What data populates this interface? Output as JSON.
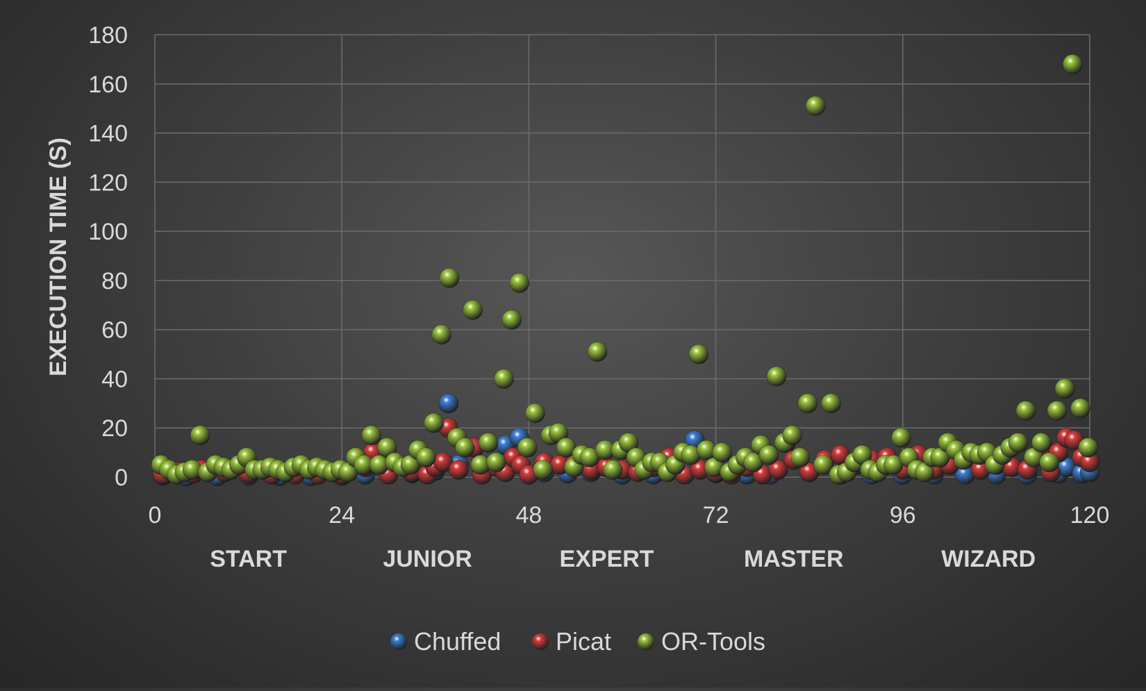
{
  "chart_data": {
    "type": "scatter",
    "title": "",
    "xlabel": "",
    "ylabel": "EXECUTION TIME (S)",
    "xlim": [
      0,
      120
    ],
    "ylim": [
      0,
      180
    ],
    "x_ticks": [
      0,
      24,
      48,
      72,
      96,
      120
    ],
    "y_ticks": [
      0,
      20,
      40,
      60,
      80,
      100,
      120,
      140,
      160,
      180
    ],
    "grid": true,
    "legend_position": "bottom",
    "group_labels": [
      {
        "label": "START",
        "x_center": 12
      },
      {
        "label": "JUNIOR",
        "x_center": 35
      },
      {
        "label": "EXPERT",
        "x_center": 58
      },
      {
        "label": "MASTER",
        "x_center": 82
      },
      {
        "label": "WIZARD",
        "x_center": 107
      }
    ],
    "series": [
      {
        "name": "Chuffed",
        "color": "#3d7fd6",
        "points": [
          [
            1,
            0.5
          ],
          [
            4,
            0.3
          ],
          [
            8,
            0.4
          ],
          [
            12,
            0.5
          ],
          [
            16,
            0.4
          ],
          [
            20,
            0.4
          ],
          [
            24,
            0.5
          ],
          [
            27,
            1
          ],
          [
            30,
            1.2
          ],
          [
            33,
            1.5
          ],
          [
            36,
            2.5
          ],
          [
            37.7,
            30
          ],
          [
            39,
            5
          ],
          [
            42,
            3
          ],
          [
            45,
            13
          ],
          [
            46.8,
            16
          ],
          [
            50,
            2
          ],
          [
            53,
            1.5
          ],
          [
            56,
            2
          ],
          [
            60,
            1
          ],
          [
            64,
            1
          ],
          [
            68,
            1.5
          ],
          [
            69.3,
            15
          ],
          [
            72,
            1.5
          ],
          [
            76,
            1
          ],
          [
            79,
            1
          ],
          [
            81,
            14
          ],
          [
            84,
            2
          ],
          [
            88,
            1
          ],
          [
            92,
            1
          ],
          [
            96,
            1
          ],
          [
            100,
            1
          ],
          [
            104,
            1
          ],
          [
            108,
            1
          ],
          [
            112,
            1
          ],
          [
            116,
            1.5
          ],
          [
            117,
            4
          ],
          [
            119,
            1.5
          ],
          [
            120,
            2
          ]
        ]
      },
      {
        "name": "Picat",
        "color": "#d93c3c",
        "points": [
          [
            1,
            1
          ],
          [
            3,
            2
          ],
          [
            5,
            1.5
          ],
          [
            6,
            3
          ],
          [
            9,
            2
          ],
          [
            12,
            1.5
          ],
          [
            15,
            1
          ],
          [
            18,
            1
          ],
          [
            21,
            1
          ],
          [
            24,
            1
          ],
          [
            27,
            4
          ],
          [
            28,
            10
          ],
          [
            30,
            1
          ],
          [
            33,
            2
          ],
          [
            35,
            1
          ],
          [
            36,
            4
          ],
          [
            37,
            6
          ],
          [
            37.7,
            20
          ],
          [
            39,
            3
          ],
          [
            41,
            12
          ],
          [
            42,
            1
          ],
          [
            44,
            4
          ],
          [
            45,
            2
          ],
          [
            46,
            8
          ],
          [
            47,
            5
          ],
          [
            48,
            1
          ],
          [
            50,
            6
          ],
          [
            52,
            5
          ],
          [
            54,
            6
          ],
          [
            56,
            3
          ],
          [
            58,
            4
          ],
          [
            60,
            3
          ],
          [
            62,
            2
          ],
          [
            64,
            4
          ],
          [
            66,
            8
          ],
          [
            68,
            1
          ],
          [
            70,
            3
          ],
          [
            72,
            2
          ],
          [
            74,
            1
          ],
          [
            76,
            4
          ],
          [
            78,
            1
          ],
          [
            80,
            3
          ],
          [
            82,
            7
          ],
          [
            84,
            2
          ],
          [
            86,
            7
          ],
          [
            88,
            9
          ],
          [
            90,
            5
          ],
          [
            92,
            7
          ],
          [
            94,
            8
          ],
          [
            96,
            3
          ],
          [
            98,
            9
          ],
          [
            100,
            3
          ],
          [
            102,
            5
          ],
          [
            104,
            8
          ],
          [
            106,
            3
          ],
          [
            108,
            5
          ],
          [
            110,
            4
          ],
          [
            112,
            3
          ],
          [
            114,
            12
          ],
          [
            115,
            2
          ],
          [
            116,
            10
          ],
          [
            117,
            16
          ],
          [
            118,
            15
          ],
          [
            119,
            8
          ],
          [
            120,
            6
          ]
        ]
      },
      {
        "name": "OR-Tools",
        "color": "#9bc53d",
        "points": [
          [
            0.8,
            5
          ],
          [
            1.8,
            3
          ],
          [
            2.8,
            1
          ],
          [
            3.8,
            2
          ],
          [
            4.8,
            3
          ],
          [
            5.8,
            17
          ],
          [
            6.8,
            2
          ],
          [
            7.8,
            5
          ],
          [
            8.8,
            4
          ],
          [
            9.8,
            3
          ],
          [
            10.8,
            5
          ],
          [
            11.8,
            8
          ],
          [
            12.8,
            3
          ],
          [
            13.8,
            3
          ],
          [
            14.8,
            4
          ],
          [
            15.8,
            3
          ],
          [
            16.8,
            2
          ],
          [
            17.8,
            4
          ],
          [
            18.8,
            5
          ],
          [
            19.8,
            3
          ],
          [
            20.8,
            4
          ],
          [
            21.8,
            3
          ],
          [
            22.8,
            2
          ],
          [
            23.8,
            3
          ],
          [
            24.8,
            2
          ],
          [
            25.8,
            8
          ],
          [
            26.8,
            5
          ],
          [
            27.8,
            17
          ],
          [
            28.8,
            5
          ],
          [
            29.8,
            12
          ],
          [
            30.8,
            6
          ],
          [
            31.8,
            4
          ],
          [
            32.8,
            5
          ],
          [
            33.8,
            11
          ],
          [
            34.8,
            8
          ],
          [
            35.8,
            22
          ],
          [
            36.8,
            58
          ],
          [
            37.8,
            81
          ],
          [
            38.8,
            16
          ],
          [
            39.8,
            12
          ],
          [
            40.8,
            68
          ],
          [
            41.8,
            5
          ],
          [
            42.8,
            14
          ],
          [
            43.8,
            6
          ],
          [
            44.8,
            40
          ],
          [
            45.8,
            64
          ],
          [
            46.8,
            79
          ],
          [
            47.8,
            12
          ],
          [
            48.8,
            26
          ],
          [
            49.8,
            3
          ],
          [
            50.8,
            17
          ],
          [
            51.8,
            18
          ],
          [
            52.8,
            12
          ],
          [
            53.8,
            4
          ],
          [
            54.8,
            9
          ],
          [
            55.8,
            8
          ],
          [
            56.8,
            51
          ],
          [
            57.8,
            11
          ],
          [
            58.8,
            3
          ],
          [
            59.8,
            11
          ],
          [
            60.8,
            14
          ],
          [
            61.8,
            8
          ],
          [
            62.8,
            3
          ],
          [
            63.8,
            6
          ],
          [
            64.8,
            6
          ],
          [
            65.8,
            2
          ],
          [
            66.8,
            5
          ],
          [
            67.8,
            10
          ],
          [
            68.8,
            9
          ],
          [
            69.8,
            50
          ],
          [
            70.8,
            11
          ],
          [
            71.8,
            4
          ],
          [
            72.8,
            10
          ],
          [
            73.8,
            2
          ],
          [
            74.8,
            5
          ],
          [
            75.8,
            8
          ],
          [
            76.8,
            6
          ],
          [
            77.8,
            13
          ],
          [
            78.8,
            9
          ],
          [
            79.8,
            41
          ],
          [
            80.8,
            14
          ],
          [
            81.8,
            17
          ],
          [
            82.8,
            8
          ],
          [
            83.8,
            30
          ],
          [
            84.8,
            151
          ],
          [
            85.8,
            5
          ],
          [
            86.8,
            30
          ],
          [
            87.8,
            1
          ],
          [
            88.8,
            2
          ],
          [
            89.8,
            6
          ],
          [
            90.8,
            9
          ],
          [
            91.8,
            3
          ],
          [
            92.8,
            2
          ],
          [
            93.8,
            5
          ],
          [
            94.8,
            5
          ],
          [
            95.8,
            16
          ],
          [
            96.8,
            8
          ],
          [
            97.8,
            3
          ],
          [
            98.8,
            2
          ],
          [
            99.8,
            8
          ],
          [
            100.8,
            8
          ],
          [
            101.8,
            14
          ],
          [
            102.8,
            11
          ],
          [
            103.8,
            7
          ],
          [
            104.8,
            10
          ],
          [
            105.8,
            9
          ],
          [
            106.8,
            10
          ],
          [
            107.8,
            5
          ],
          [
            108.8,
            9
          ],
          [
            109.8,
            12
          ],
          [
            110.8,
            14
          ],
          [
            111.8,
            27
          ],
          [
            112.8,
            8
          ],
          [
            113.8,
            14
          ],
          [
            114.8,
            6
          ],
          [
            115.8,
            27
          ],
          [
            116.8,
            36
          ],
          [
            117.8,
            168
          ],
          [
            118.8,
            28
          ],
          [
            119.8,
            12
          ]
        ]
      }
    ]
  }
}
